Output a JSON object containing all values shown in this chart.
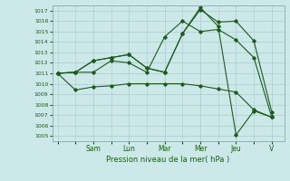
{
  "title": "",
  "xlabel": "Pression niveau de la mer( hPa )",
  "ylabel": "",
  "ylim": [
    1004.5,
    1017.5
  ],
  "yticks": [
    1005,
    1006,
    1007,
    1008,
    1009,
    1010,
    1011,
    1012,
    1013,
    1014,
    1015,
    1016,
    1017
  ],
  "day_labels": [
    "Sam",
    "Lun",
    "Mar",
    "Mer",
    "Jeu",
    "V"
  ],
  "day_positions": [
    2,
    4,
    6,
    8,
    10,
    12
  ],
  "background_color": "#cce8e8",
  "grid_color": "#aacccc",
  "line_color": "#1a5c1a",
  "series": [
    [
      0,
      1011.0,
      1,
      1009.4,
      2,
      1009.7,
      3,
      1009.8,
      4,
      1010.0,
      5,
      1010.0,
      6,
      1010.0,
      7,
      1010.0,
      8,
      1009.8,
      9,
      1009.5,
      10,
      1009.2,
      11,
      1007.5,
      12,
      1006.8
    ],
    [
      0,
      1011.0,
      1,
      1011.1,
      2,
      1011.1,
      3,
      1012.2,
      4,
      1012.0,
      5,
      1011.1,
      6,
      1014.5,
      7,
      1016.0,
      8,
      1015.0,
      9,
      1015.2,
      10,
      1014.2,
      11,
      1012.5,
      12,
      1006.8
    ],
    [
      0,
      1011.0,
      1,
      1011.1,
      2,
      1012.2,
      3,
      1012.5,
      4,
      1012.8,
      5,
      1011.5,
      6,
      1011.1,
      7,
      1014.8,
      8,
      1017.1,
      9,
      1015.9,
      10,
      1016.0,
      11,
      1014.1,
      12,
      1007.3
    ],
    [
      0,
      1011.0,
      1,
      1011.1,
      2,
      1012.2,
      3,
      1012.5,
      4,
      1012.8,
      5,
      1011.5,
      6,
      1011.1,
      7,
      1014.8,
      8,
      1017.3,
      9,
      1015.5,
      10,
      1005.1,
      11,
      1007.4,
      12,
      1006.8
    ]
  ],
  "figsize": [
    3.2,
    2.0
  ],
  "dpi": 100
}
